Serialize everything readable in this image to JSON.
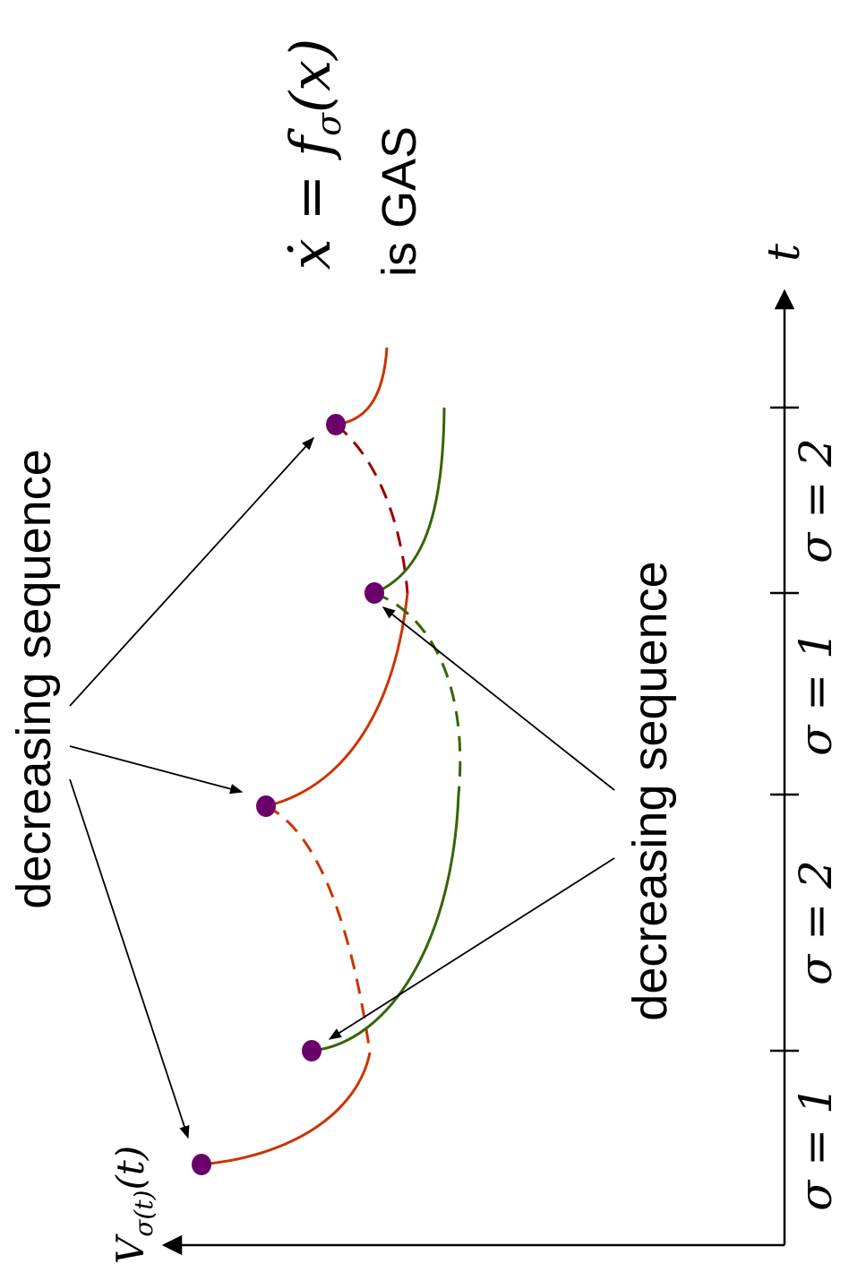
{
  "annotations": {
    "upper_sequence_label": "decreasing sequence",
    "lower_sequence_label": "decreasing sequence",
    "gas_equation": "ẋ = f",
    "gas_equation_sub": "σ",
    "gas_equation_tail": "(x)",
    "gas_text": "is GAS"
  },
  "axes": {
    "time_label": "t",
    "value_label_main": "V",
    "value_label_sub": "σ(t)",
    "value_label_tail": "(t)"
  },
  "intervals": [
    {
      "label": "σ = 1"
    },
    {
      "label": "σ = 2"
    },
    {
      "label": "σ = 1"
    },
    {
      "label": "σ = 2"
    }
  ],
  "colors": {
    "mode_1_curve": "#cc3300",
    "mode_2_curve": "#336600",
    "mode_2_dashed_upper": "#990000",
    "switch_point": "#6b006b",
    "axis": "#000000"
  }
}
